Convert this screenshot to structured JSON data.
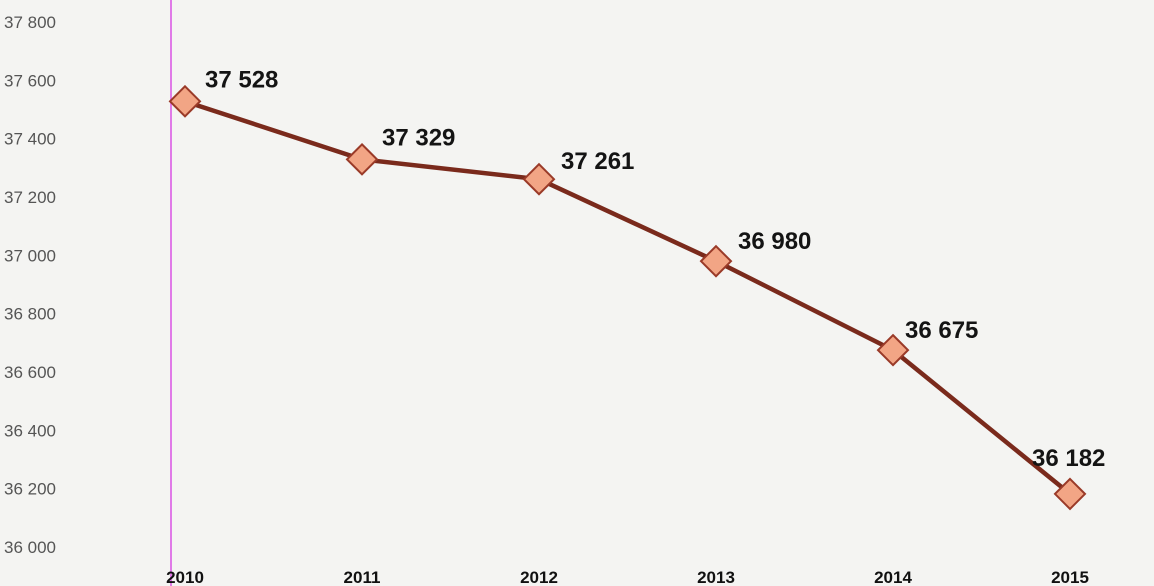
{
  "chart_data": {
    "type": "line",
    "categories": [
      "2010",
      "2011",
      "2012",
      "2013",
      "2014",
      "2015"
    ],
    "series": [
      {
        "values": [
          37528,
          37329,
          37261,
          36980,
          36675,
          36182
        ]
      }
    ],
    "data_labels": [
      "37 528",
      "37 329",
      "37 261",
      "36 980",
      "36 675",
      "36 182"
    ],
    "y_ticks": [
      "36 000",
      "36 200",
      "36 400",
      "36 600",
      "36 800",
      "37 000",
      "37 200",
      "37 400",
      "37 600",
      "37 800"
    ],
    "ylim": [
      36000,
      37800
    ],
    "title": "",
    "xlabel": "",
    "ylabel": "",
    "grid": false,
    "colors": {
      "line": "#7a2a1c",
      "marker_fill": "#f2a585",
      "marker_stroke": "#9a3a28",
      "axis_line": "#e07ae8"
    }
  }
}
